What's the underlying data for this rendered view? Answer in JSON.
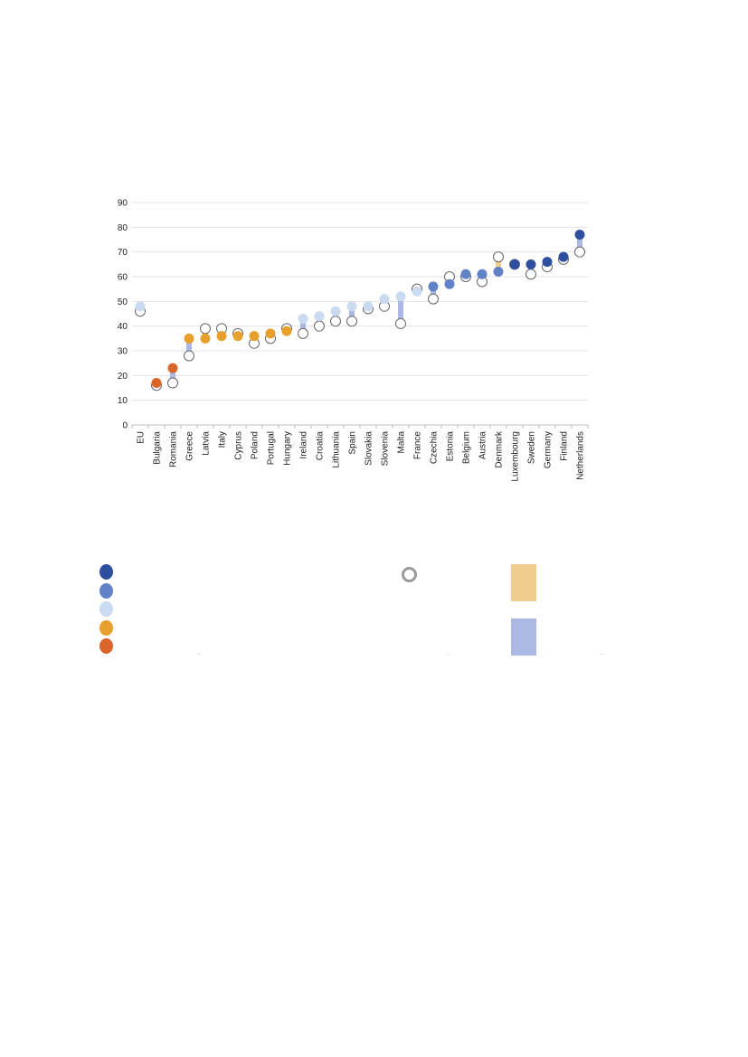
{
  "chart_data": {
    "type": "scatter",
    "ylim": [
      0,
      90
    ],
    "yticks": [
      0,
      10,
      20,
      30,
      40,
      50,
      60,
      70,
      80,
      90
    ],
    "grid": true,
    "categories": [
      "EU",
      "Bulgaria",
      "Romania",
      "Greece",
      "Latvia",
      "Italy",
      "Cyprus",
      "Poland",
      "Portugal",
      "Hungary",
      "Ireland",
      "Croatia",
      "Lithuania",
      "Spain",
      "Slovakia",
      "Slovenia",
      "Malta",
      "France",
      "Czechia",
      "Estonia",
      "Belgium",
      "Austria",
      "Denmark",
      "Luxembourg",
      "Sweden",
      "Germany",
      "Finland",
      "Netherlands"
    ],
    "series": [
      {
        "values": [
          48,
          17,
          23,
          35,
          35,
          36,
          36,
          36,
          37,
          38,
          43,
          44,
          46,
          48,
          48,
          51,
          52,
          54,
          56,
          57,
          61,
          61,
          62,
          65,
          65,
          66,
          68,
          77
        ]
      },
      {
        "values": [
          46,
          16,
          17,
          28,
          39,
          39,
          37,
          33,
          35,
          39,
          37,
          40,
          42,
          42,
          47,
          48,
          41,
          55,
          51,
          60,
          60,
          58,
          68,
          65,
          61,
          64,
          67,
          70
        ]
      }
    ],
    "group": [
      3,
      1,
      1,
      2,
      2,
      2,
      2,
      2,
      2,
      2,
      3,
      3,
      3,
      3,
      3,
      3,
      3,
      3,
      4,
      4,
      4,
      4,
      4,
      5,
      5,
      5,
      5,
      5
    ]
  },
  "colors": {
    "group_5": "#2e4fa0",
    "group_4": "#6282c7",
    "group_3": "#c9daf1",
    "group_2": "#e8a02c",
    "group_1": "#d9652b",
    "ring": "#666666",
    "ring_legend": "#9a9a9a",
    "bar_increase": "#aab8e3",
    "bar_decrease": "#f1cc8e",
    "grid": "#e3e3e3",
    "axis": "#bdbdbd"
  },
  "legend": {
    "dots": [
      {
        "color_key": "group_5",
        "icon": "dot-icon"
      },
      {
        "color_key": "group_4",
        "icon": "dot-icon"
      },
      {
        "color_key": "group_3",
        "icon": "dot-icon"
      },
      {
        "color_key": "group_2",
        "icon": "dot-icon"
      },
      {
        "color_key": "group_1",
        "icon": "dot-icon"
      }
    ],
    "ring": {
      "icon": "ring-icon"
    },
    "bars": [
      {
        "color_key": "bar_decrease",
        "icon": "bar-swatch-icon"
      },
      {
        "color_key": "bar_increase",
        "icon": "bar-swatch-icon"
      }
    ]
  }
}
